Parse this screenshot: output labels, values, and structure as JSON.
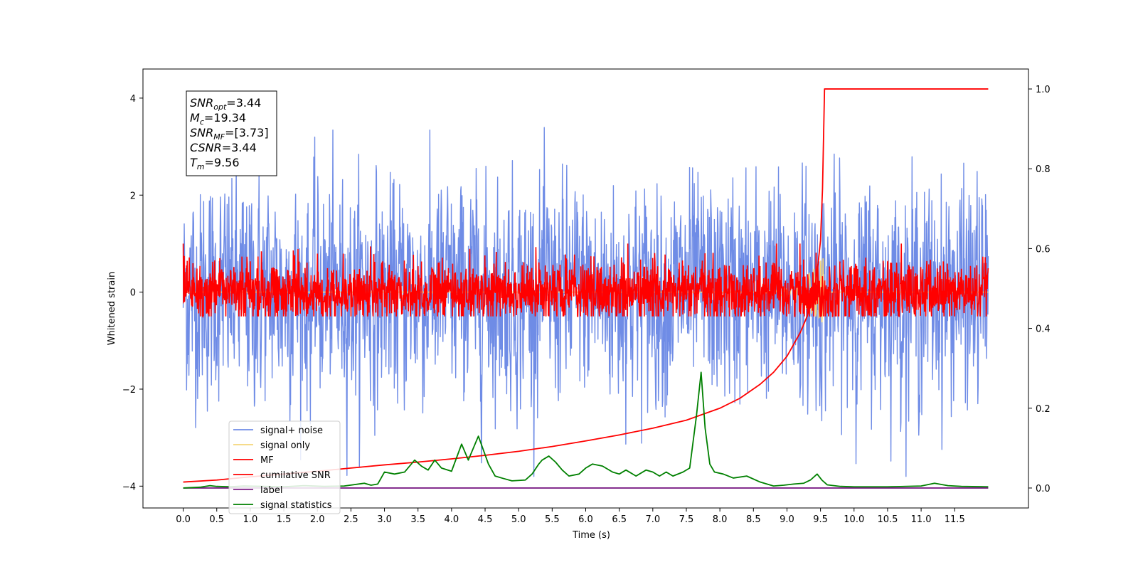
{
  "chart_data": {
    "type": "line",
    "xlabel": "Time (s)",
    "ylabel": "Whitened strain",
    "xlim": [
      -0.6,
      12.6
    ],
    "ylim": [
      -4.45,
      4.6
    ],
    "y2lim": [
      -0.05,
      1.05
    ],
    "xticks": [
      0.0,
      0.5,
      1.0,
      1.5,
      2.0,
      2.5,
      3.0,
      3.5,
      4.0,
      4.5,
      5.0,
      5.5,
      6.0,
      6.5,
      7.0,
      7.5,
      8.0,
      8.5,
      9.0,
      9.5,
      10.0,
      10.5,
      11.0,
      11.5
    ],
    "xtick_labels": [
      "0.0",
      "0.5",
      "1.0",
      "1.5",
      "2.0",
      "2.5",
      "3.0",
      "3.5",
      "4.0",
      "4.5",
      "5.0",
      "5.5",
      "6.0",
      "6.5",
      "7.0",
      "7.5",
      "8.0",
      "8.5",
      "9.0",
      "9.5",
      "10.0",
      "10.5",
      "11.0",
      "11.5"
    ],
    "yticks": [
      -4,
      -2,
      0,
      2,
      4
    ],
    "ytick_labels": [
      "−4",
      "−2",
      "0",
      "2",
      "4"
    ],
    "y2ticks": [
      0.0,
      0.2,
      0.4,
      0.6,
      0.8,
      1.0
    ],
    "y2tick_labels": [
      "0.0",
      "0.2",
      "0.4",
      "0.6",
      "0.8",
      "1.0"
    ],
    "grid": false,
    "legend_placement": "lower-left",
    "annotation": {
      "line1": {
        "sym": "SNR",
        "sub": "opt",
        "val": "=3.44"
      },
      "line2": {
        "sym": "M",
        "sub": "c",
        "val": "=19.34"
      },
      "line3": {
        "sym": "SNR",
        "sub": "MF",
        "val": "=[3.73]"
      },
      "line4": {
        "sym": "CSNR",
        "sub": "",
        "val": "=3.44"
      },
      "line5": {
        "sym": "T",
        "sub": "m",
        "val": "=9.56"
      }
    },
    "series": [
      {
        "name": "signal+ noise",
        "color": "#6f8ce6",
        "axis": "left",
        "style": "noise",
        "x_range": [
          0.0,
          12.0
        ],
        "amplitude_std": 1.1,
        "approx_min": -3.8,
        "approx_max": 4.1
      },
      {
        "name": "signal only",
        "color": "#f5d67a",
        "axis": "left",
        "style": "chirp",
        "x_range": [
          0.0,
          12.0
        ],
        "peak_time": 9.56,
        "peak_abs": 0.75
      },
      {
        "name": "MF",
        "color": "#ff0000",
        "axis": "left",
        "style": "noise",
        "x_range": [
          0.0,
          12.0
        ],
        "amplitude_std": 0.25,
        "approx_min": -0.5,
        "approx_max": 1.0
      },
      {
        "name": "cumilative SNR",
        "color": "#ff0000",
        "axis": "right",
        "x": [
          0.0,
          0.5,
          1.0,
          1.5,
          2.0,
          2.5,
          3.0,
          3.5,
          4.0,
          4.5,
          5.0,
          5.5,
          6.0,
          6.5,
          7.0,
          7.5,
          8.0,
          8.3,
          8.6,
          8.8,
          9.0,
          9.2,
          9.3,
          9.4,
          9.45,
          9.5,
          9.53,
          9.56,
          9.6,
          12.0
        ],
        "y": [
          0.015,
          0.02,
          0.028,
          0.035,
          0.042,
          0.05,
          0.058,
          0.065,
          0.073,
          0.082,
          0.092,
          0.104,
          0.118,
          0.133,
          0.15,
          0.17,
          0.2,
          0.225,
          0.26,
          0.29,
          0.33,
          0.39,
          0.43,
          0.49,
          0.54,
          0.62,
          0.75,
          1.0,
          1.0,
          1.0
        ]
      },
      {
        "name": "label",
        "color": "#7b1f86",
        "axis": "right",
        "x": [
          0.0,
          12.0
        ],
        "y": [
          0.0,
          0.0
        ]
      },
      {
        "name": "signal statistics",
        "color": "#008000",
        "axis": "right",
        "x": [
          0.0,
          0.25,
          0.4,
          0.5,
          0.7,
          0.9,
          1.2,
          1.5,
          1.8,
          2.1,
          2.4,
          2.7,
          2.8,
          2.9,
          3.0,
          3.15,
          3.3,
          3.45,
          3.55,
          3.65,
          3.75,
          3.85,
          4.0,
          4.15,
          4.25,
          4.4,
          4.55,
          4.65,
          4.75,
          4.9,
          5.1,
          5.2,
          5.3,
          5.35,
          5.45,
          5.55,
          5.65,
          5.75,
          5.9,
          6.0,
          6.1,
          6.25,
          6.4,
          6.5,
          6.6,
          6.75,
          6.9,
          7.0,
          7.1,
          7.2,
          7.3,
          7.45,
          7.55,
          7.65,
          7.72,
          7.78,
          7.85,
          7.92,
          8.05,
          8.2,
          8.4,
          8.6,
          8.8,
          8.95,
          9.1,
          9.25,
          9.35,
          9.45,
          9.52,
          9.6,
          9.8,
          10.0,
          10.5,
          11.0,
          11.2,
          11.4,
          11.6,
          12.0
        ],
        "y": [
          0.0,
          0.002,
          0.006,
          0.004,
          0.003,
          0.005,
          0.004,
          0.003,
          0.006,
          0.004,
          0.005,
          0.012,
          0.007,
          0.01,
          0.04,
          0.035,
          0.04,
          0.07,
          0.055,
          0.045,
          0.07,
          0.05,
          0.042,
          0.11,
          0.07,
          0.13,
          0.06,
          0.03,
          0.025,
          0.018,
          0.02,
          0.035,
          0.06,
          0.07,
          0.08,
          0.065,
          0.045,
          0.03,
          0.035,
          0.05,
          0.06,
          0.055,
          0.04,
          0.035,
          0.045,
          0.03,
          0.045,
          0.04,
          0.03,
          0.04,
          0.03,
          0.04,
          0.05,
          0.18,
          0.29,
          0.15,
          0.06,
          0.04,
          0.035,
          0.025,
          0.03,
          0.015,
          0.005,
          0.007,
          0.01,
          0.012,
          0.02,
          0.035,
          0.02,
          0.008,
          0.004,
          0.003,
          0.003,
          0.005,
          0.012,
          0.006,
          0.004,
          0.003
        ]
      }
    ]
  }
}
